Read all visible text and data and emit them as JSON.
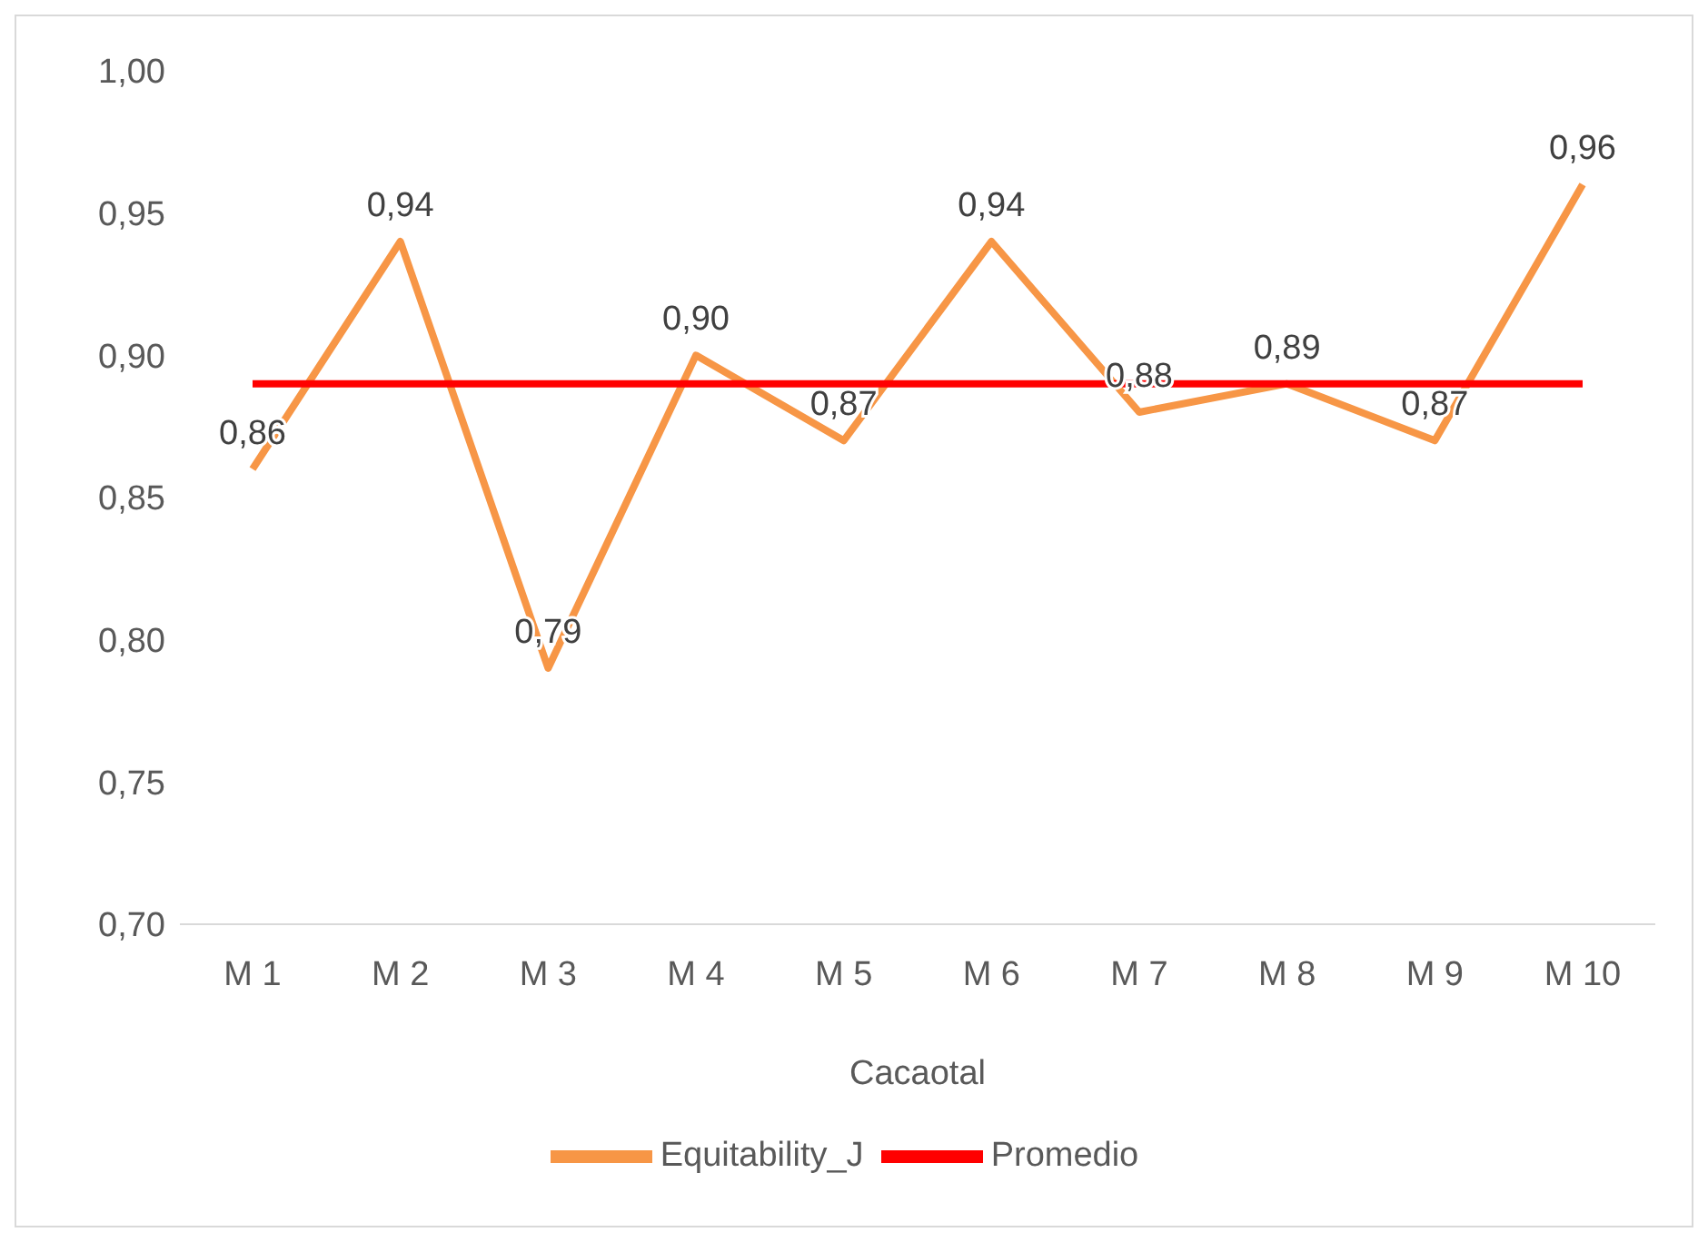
{
  "chart_data": {
    "type": "line",
    "categories": [
      "M 1",
      "M 2",
      "M 3",
      "M 4",
      "M 5",
      "M 6",
      "M 7",
      "M 8",
      "M 9",
      "M 10"
    ],
    "xlabel": "Cacaotal",
    "series": [
      {
        "name": "Equitability_J",
        "color": "#f79646",
        "values": [
          0.86,
          0.94,
          0.79,
          0.9,
          0.87,
          0.94,
          0.88,
          0.89,
          0.87,
          0.96
        ],
        "value_labels": [
          "0,86",
          "0,94",
          "0,79",
          "0,90",
          "0,87",
          "0,94",
          "0,88",
          "0,89",
          "0,87",
          "0,96"
        ]
      },
      {
        "name": "Promedio",
        "color": "#ff0000",
        "values": [
          0.89,
          0.89,
          0.89,
          0.89,
          0.89,
          0.89,
          0.89,
          0.89,
          0.89,
          0.89
        ]
      }
    ],
    "ylim": [
      0.7,
      1.0
    ],
    "yticks": [
      {
        "value": 0.7,
        "label": "0,70"
      },
      {
        "value": 0.75,
        "label": "0,75"
      },
      {
        "value": 0.8,
        "label": "0,80"
      },
      {
        "value": 0.85,
        "label": "0,85"
      },
      {
        "value": 0.9,
        "label": "0,90"
      },
      {
        "value": 0.95,
        "label": "0,95"
      },
      {
        "value": 1.0,
        "label": "1,00"
      }
    ],
    "grid": false,
    "legend": "bottom",
    "marker": "none",
    "line_style": "solid"
  }
}
